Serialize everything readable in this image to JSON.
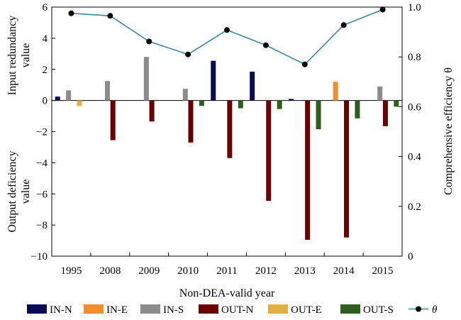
{
  "chart_data": {
    "type": "bar",
    "categories": [
      "1995",
      "2008",
      "2009",
      "2010",
      "2011",
      "2012",
      "2013",
      "2014",
      "2015"
    ],
    "series": [
      {
        "name": "IN-N",
        "color": "#0a0a55",
        "values": [
          0.25,
          0,
          0,
          0,
          2.55,
          1.85,
          0.1,
          0,
          0
        ]
      },
      {
        "name": "IN-E",
        "color": "#f08c2c",
        "values": [
          0,
          0,
          0,
          0,
          0,
          0,
          0,
          1.2,
          0
        ]
      },
      {
        "name": "IN-S",
        "color": "#8c8c8c",
        "values": [
          0.65,
          1.25,
          2.8,
          0.75,
          0,
          0,
          0,
          0,
          0.9
        ]
      },
      {
        "name": "OUT-N",
        "color": "#6b0000",
        "values": [
          0,
          -2.55,
          -1.35,
          -2.7,
          -3.7,
          -6.45,
          -8.95,
          -8.8,
          -1.65
        ]
      },
      {
        "name": "OUT-E",
        "color": "#e0b040",
        "values": [
          -0.35,
          0,
          0,
          0,
          0,
          0,
          0,
          0,
          0
        ]
      },
      {
        "name": "OUT-S",
        "color": "#2e5e1e",
        "values": [
          0,
          0,
          0,
          -0.35,
          -0.5,
          -0.55,
          -1.85,
          -1.15,
          -0.4
        ]
      }
    ],
    "line": {
      "name": "θ",
      "color": "#3d8a96",
      "values": [
        0.975,
        0.965,
        0.862,
        0.81,
        0.908,
        0.847,
        0.77,
        0.928,
        0.99
      ]
    },
    "xlabel": "Non-DEA-valid year",
    "ylabel_top": "Input redundancy value",
    "ylabel_bottom": "Output deficiency value",
    "y2label": "Comprehensive efficiency θ",
    "ylim": [
      -10,
      6
    ],
    "yticks": [
      "−10",
      "−8",
      "−6",
      "−4",
      "−2",
      "0",
      "2",
      "4",
      "6"
    ],
    "y2lim": [
      0,
      1.0
    ],
    "y2ticks": [
      "0",
      "0.2",
      "0.4",
      "0.6",
      "0.8",
      "1.0"
    ],
    "grid": false,
    "legend_position": "bottom"
  }
}
